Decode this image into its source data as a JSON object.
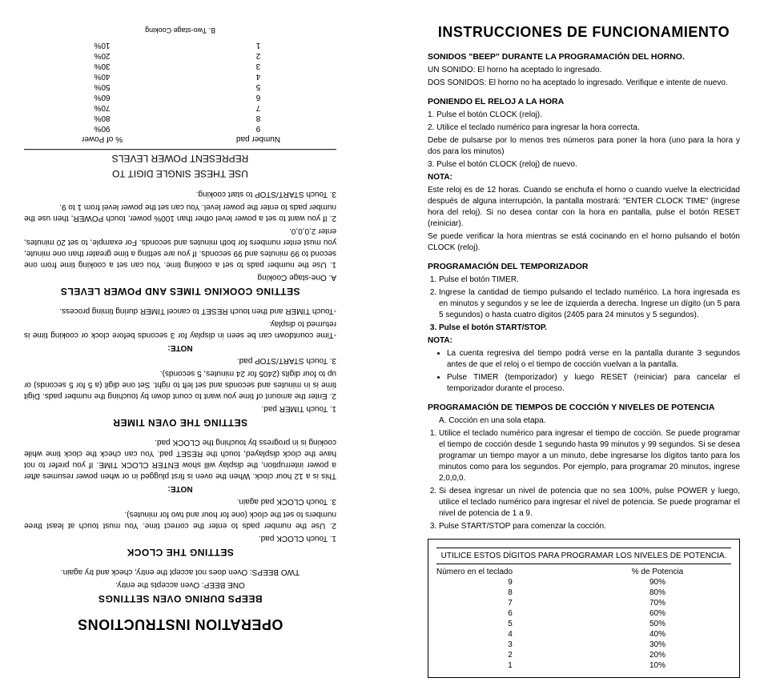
{
  "es": {
    "title": "INSTRUCCIONES DE FUNCIONAMIENTO",
    "beeps_h": "SONIDOS \"BEEP\" DURANTE LA PROGRAMACIÓN DEL HORNO.",
    "beeps_1": "UN SONIDO: El horno ha aceptado lo ingresado.",
    "beeps_2": "DOS SONIDOS: El horno no ha aceptado lo ingresado. Verifique e intente de nuevo.",
    "clock_h": "PONIENDO EL RELOJ A LA HORA",
    "clock_1": "1. Pulse el botón CLOCK (reloj).",
    "clock_2": "2. Utilice el teclado numérico para ingresar la hora correcta.",
    "clock_2b": "Debe de pulsarse por lo menos tres números para poner la hora (uno para la hora y dos para los minutos)",
    "clock_3": "3. Pulse el botón CLOCK (reloj) de nuevo.",
    "nota": "NOTA:",
    "clock_note": "Este reloj es de 12 horas. Cuando se enchufa el horno o cuando vuelve la electricidad después de alguna interrupción, la pantalla mostrará: \"ENTER CLOCK TIME\" (ingrese hora del reloj). Si no desea contar con la hora en pantalla, pulse el botón RESET (reiniciar).",
    "clock_note2": "Se puede verificar la hora mientras se está cocinando en el horno pulsando el botón CLOCK (reloj).",
    "timer_h": "PROGRAMACIÓN DEL TEMPORIZADOR",
    "timer_1": "Pulse el botón TIMER.",
    "timer_2": "Ingrese la cantidad de tiempo pulsando el teclado numérico. La hora ingresada es en minutos y segundos y se lee de izquierda a derecha. Ingrese un dígito (un 5 para 5 segundos) o hasta cuatro dígitos (2405 para 24 minutos y 5 segundos).",
    "timer_3": "Pulse el botón START/STOP.",
    "timer_note1": "La cuenta regresiva del tiempo podrá verse en la pantalla durante 3 segundos antes de que el reloj o el tiempo de cocción vuelvan a la pantalla.",
    "timer_note2": "Pulse TIMER (temporizador) y luego RESET (reiniciar) para cancelar el temporizador durante el proceso.",
    "cook_h": "PROGRAMACIÓN DE TIEMPOS DE COCCIÓN Y NIVELES DE POTENCIA",
    "cook_a": "A.   Cocción en una sola etapa.",
    "cook_1": "Utilice el teclado numérico para ingresar el tiempo de cocción. Se puede programar el tiempo de cocción desde 1 segundo hasta 99 minutos y 99 segundos. Si se desea programar un tiempo mayor a un minuto, debe ingresarse los dígitos tanto para los minutos como para los segundos. Por ejemplo, para programar 20 minutos, ingrese 2,0,0,0.",
    "cook_2": "Si desea ingresar un nivel de potencia que no sea 100%, pulse POWER y luego, utilice el teclado numérico para ingresar el nivel de potencia. Se puede programar el nivel de potencia de 1 a 9.",
    "cook_3": "Pulse START/STOP para comenzar la cocción.",
    "table_header": "UTILICE ESTOS DÍGITOS PARA PROGRAMAR LOS NIVELES DE POTENCIA.",
    "col1": "Número en el teclado",
    "col2": "% de Potencia",
    "rows": [
      [
        "9",
        "90%"
      ],
      [
        "8",
        "80%"
      ],
      [
        "7",
        "70%"
      ],
      [
        "6",
        "60%"
      ],
      [
        "5",
        "50%"
      ],
      [
        "4",
        "40%"
      ],
      [
        "3",
        "30%"
      ],
      [
        "2",
        "20%"
      ],
      [
        "1",
        "10%"
      ]
    ]
  },
  "en": {
    "title": "OPERATION INSTRUCTIONS",
    "beeps_h": "BEEPS DURING OVEN SETTINGS",
    "beeps_1": "ONE BEEP: Oven accepts the entry.",
    "beeps_2": "TWO BEEPS: Oven does not accept the entry, check and try again.",
    "clock_h": "SETTING THE CLOCK",
    "clock_1": "1.  Touch CLOCK pad.",
    "clock_2": "2.  Use the number pads to enter the    correct time. You must touch at least    three numbers to set the clock (one for hour and two for minutes).",
    "clock_3": "3.  Touch CLOCK pad again.",
    "nota": "NOTE:",
    "clock_note": "This is a 12 hour clock. When the oven is first plugged in or when power resumes after a power interruption, the display will show ENTER CLOCK TIME. If you prefer to not have the clock displayed, touch the RESET pad. You can check the clock time while cooking is in progress by touching the CLOCK pad.",
    "timer_h": "SETTING THE OVEN TIMER",
    "timer_1": "1.  Touch TIMER pad.",
    "timer_2": "2.  Enter the amount of time you want to count down by touching the number pads. Digit time is in minutes and seconds and set left to right. Set one digit (a 5 for 5 seconds) or up to four digits (2405 for 24 minutes, 5 seconds).",
    "timer_3": "3.  Touch START/STOP pad.",
    "timer_note1": "-Time countdown can be seen in    display for 3 seconds before clock or    cooking time is returned to display.",
    "timer_note2": "-Touch TIMER and then touch RESET    to cancel TIMER during timing    process.",
    "cook_h": "SETTING COOKING TIMES AND POWER LEVELS",
    "cook_a": "A.   One-stage Cooking",
    "cook_1": "1.  Use the number pads to set a cooking time. You can set a cooking time from one second to 99 minutes and 99 seconds. If you are setting a time greater than one minute, you must enter numbers for both minutes and seconds. For example, to set 20 minutes, enter 2,0,0,0.",
    "cook_2": "2.  If you want to set a power level other than 100% power, touch POWER, then use the number pads to enter the power level. You can set the power level from 1 to 9.",
    "cook_3": "3.  Touch START/STOP to start cooking.",
    "table_header1": "USE THESE SINGLE DIGIT TO",
    "table_header2": "REPRESENT POWER LEVELS",
    "col1": "Number pad",
    "col2": "% of Power",
    "rows": [
      [
        "9",
        "90%"
      ],
      [
        "8",
        "80%"
      ],
      [
        "7",
        "70%"
      ],
      [
        "6",
        "60%"
      ],
      [
        "5",
        "50%"
      ],
      [
        "4",
        "40%"
      ],
      [
        "3",
        "30%"
      ],
      [
        "2",
        "20%"
      ],
      [
        "1",
        "10%"
      ]
    ],
    "footer": "B. Two-stage Cooking"
  }
}
